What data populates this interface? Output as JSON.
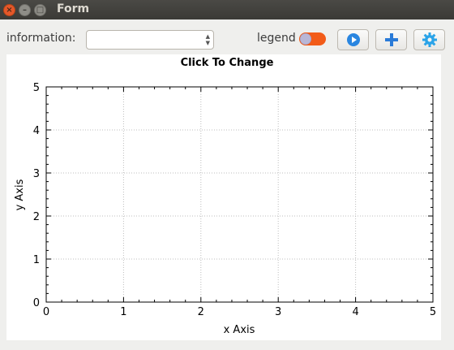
{
  "window": {
    "title": "Form"
  },
  "toolbar": {
    "information_label": "information:",
    "information_value": "",
    "legend_label": "legend",
    "legend_on": true,
    "icons": [
      "play-icon",
      "plus-icon",
      "gear-icon"
    ]
  },
  "chart_data": {
    "type": "scatter",
    "title": "Click To Change",
    "xlabel": "x Axis",
    "ylabel": "y Axis",
    "xlim": [
      0,
      5
    ],
    "ylim": [
      0,
      5
    ],
    "xticks": [
      "0",
      "1",
      "2",
      "3",
      "4",
      "5"
    ],
    "yticks": [
      "0",
      "1",
      "2",
      "3",
      "4",
      "5"
    ],
    "grid": true,
    "series": []
  }
}
